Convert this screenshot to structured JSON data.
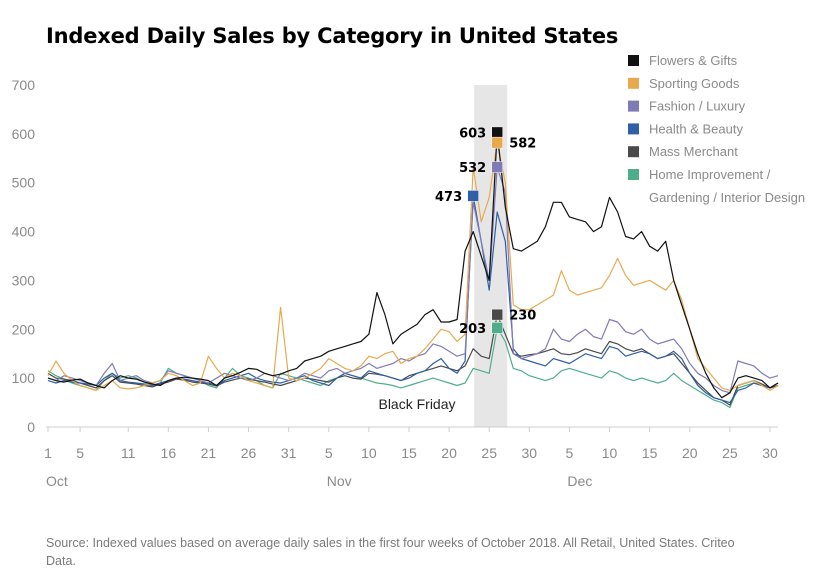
{
  "chart_data": {
    "type": "line",
    "title": "Indexed Daily Sales by Category in United States",
    "xlabel": "",
    "ylabel": "",
    "ylim": [
      0,
      700
    ],
    "y_ticks": [
      0,
      100,
      200,
      300,
      400,
      500,
      600,
      700
    ],
    "x": [
      "Oct 1",
      "Oct 2",
      "Oct 3",
      "Oct 4",
      "Oct 5",
      "Oct 6",
      "Oct 7",
      "Oct 8",
      "Oct 9",
      "Oct 10",
      "Oct 11",
      "Oct 12",
      "Oct 13",
      "Oct 14",
      "Oct 15",
      "Oct 16",
      "Oct 17",
      "Oct 18",
      "Oct 19",
      "Oct 20",
      "Oct 21",
      "Oct 22",
      "Oct 23",
      "Oct 24",
      "Oct 25",
      "Oct 26",
      "Oct 27",
      "Oct 28",
      "Oct 29",
      "Oct 30",
      "Oct 31",
      "Nov 1",
      "Nov 2",
      "Nov 3",
      "Nov 4",
      "Nov 5",
      "Nov 6",
      "Nov 7",
      "Nov 8",
      "Nov 9",
      "Nov 10",
      "Nov 11",
      "Nov 12",
      "Nov 13",
      "Nov 14",
      "Nov 15",
      "Nov 16",
      "Nov 17",
      "Nov 18",
      "Nov 19",
      "Nov 20",
      "Nov 21",
      "Nov 22",
      "Nov 23",
      "Nov 24",
      "Nov 25",
      "Nov 26",
      "Nov 27",
      "Nov 28",
      "Nov 29",
      "Nov 30",
      "Dec 1",
      "Dec 2",
      "Dec 3",
      "Dec 4",
      "Dec 5",
      "Dec 6",
      "Dec 7",
      "Dec 8",
      "Dec 9",
      "Dec 10",
      "Dec 11",
      "Dec 12",
      "Dec 13",
      "Dec 14",
      "Dec 15",
      "Dec 16",
      "Dec 17",
      "Dec 18",
      "Dec 19",
      "Dec 20",
      "Dec 21",
      "Dec 22",
      "Dec 23",
      "Dec 24",
      "Dec 25",
      "Dec 26",
      "Dec 27",
      "Dec 28",
      "Dec 29",
      "Dec 30",
      "Dec 31"
    ],
    "x_tick_labels": [
      {
        "day": "1",
        "month": "Oct",
        "date": "Oct 1"
      },
      {
        "day": "5",
        "month": "",
        "date": "Oct 5"
      },
      {
        "day": "11",
        "month": "",
        "date": "Oct 11"
      },
      {
        "day": "16",
        "month": "",
        "date": "Oct 16"
      },
      {
        "day": "21",
        "month": "",
        "date": "Oct 21"
      },
      {
        "day": "26",
        "month": "",
        "date": "Oct 26"
      },
      {
        "day": "31",
        "month": "",
        "date": "Oct 31"
      },
      {
        "day": "5",
        "month": "Nov",
        "date": "Nov 5"
      },
      {
        "day": "10",
        "month": "",
        "date": "Nov 10"
      },
      {
        "day": "15",
        "month": "",
        "date": "Nov 15"
      },
      {
        "day": "20",
        "month": "",
        "date": "Nov 20"
      },
      {
        "day": "25",
        "month": "",
        "date": "Nov 25"
      },
      {
        "day": "30",
        "month": "",
        "date": "Nov 30"
      },
      {
        "day": "5",
        "month": "Dec",
        "date": "Dec 5"
      },
      {
        "day": "10",
        "month": "",
        "date": "Dec 10"
      },
      {
        "day": "15",
        "month": "",
        "date": "Dec 15"
      },
      {
        "day": "20",
        "month": "",
        "date": "Dec 20"
      },
      {
        "day": "25",
        "month": "",
        "date": "Dec 25"
      },
      {
        "day": "30",
        "month": "",
        "date": "Dec 30"
      }
    ],
    "highlight": {
      "from": "Nov 23",
      "to": "Nov 26",
      "label": "Black Friday",
      "color": "#e6e6e6"
    },
    "legend_position": "top-right",
    "grid": false,
    "series": [
      {
        "name": "Flowers & Gifts",
        "color": "#111111",
        "values": [
          100,
          95,
          92,
          96,
          98,
          90,
          85,
          80,
          95,
          105,
          100,
          98,
          92,
          88,
          85,
          95,
          100,
          102,
          100,
          98,
          95,
          85,
          100,
          105,
          112,
          120,
          118,
          110,
          105,
          108,
          115,
          120,
          135,
          140,
          145,
          155,
          160,
          165,
          170,
          175,
          190,
          275,
          230,
          170,
          190,
          200,
          210,
          230,
          240,
          215,
          215,
          220,
          360,
          400,
          350,
          300,
          603,
          450,
          365,
          360,
          370,
          380,
          410,
          460,
          460,
          430,
          425,
          420,
          400,
          410,
          470,
          440,
          390,
          385,
          400,
          370,
          360,
          380,
          300,
          250,
          200,
          150,
          110,
          80,
          60,
          70,
          100,
          105,
          100,
          95,
          80,
          90
        ]
      },
      {
        "name": "Sporting Goods",
        "color": "#e8a94e",
        "values": [
          105,
          135,
          110,
          95,
          85,
          80,
          75,
          85,
          95,
          80,
          78,
          80,
          85,
          90,
          95,
          110,
          105,
          95,
          85,
          90,
          145,
          120,
          100,
          110,
          105,
          95,
          90,
          85,
          80,
          245,
          100,
          95,
          100,
          110,
          120,
          140,
          130,
          120,
          115,
          125,
          145,
          140,
          150,
          155,
          130,
          140,
          145,
          160,
          180,
          200,
          195,
          175,
          190,
          532,
          420,
          470,
          582,
          500,
          250,
          240,
          240,
          250,
          260,
          270,
          320,
          280,
          270,
          275,
          280,
          285,
          310,
          345,
          310,
          290,
          295,
          300,
          290,
          280,
          300,
          260,
          200,
          140,
          120,
          100,
          80,
          75,
          85,
          90,
          95,
          85,
          75,
          85
        ]
      },
      {
        "name": "Fashion / Luxury",
        "color": "#7f7bb5",
        "values": [
          100,
          95,
          105,
          100,
          95,
          90,
          85,
          110,
          130,
          95,
          100,
          105,
          95,
          90,
          95,
          115,
          110,
          105,
          100,
          95,
          90,
          100,
          110,
          105,
          100,
          95,
          100,
          110,
          105,
          100,
          95,
          100,
          110,
          105,
          100,
          115,
          120,
          110,
          115,
          120,
          130,
          120,
          125,
          130,
          140,
          135,
          145,
          150,
          170,
          165,
          155,
          145,
          150,
          460,
          380,
          300,
          532,
          480,
          150,
          140,
          145,
          150,
          160,
          200,
          180,
          175,
          190,
          200,
          185,
          180,
          220,
          215,
          195,
          190,
          200,
          180,
          170,
          175,
          180,
          160,
          130,
          110,
          100,
          85,
          75,
          70,
          135,
          130,
          125,
          110,
          100,
          105
        ]
      },
      {
        "name": "Health & Beauty",
        "color": "#2f5fa7",
        "values": [
          95,
          90,
          95,
          92,
          90,
          88,
          85,
          100,
          110,
          95,
          92,
          90,
          88,
          85,
          90,
          95,
          100,
          98,
          95,
          92,
          90,
          85,
          95,
          100,
          105,
          110,
          100,
          95,
          92,
          90,
          95,
          100,
          105,
          95,
          90,
          85,
          100,
          110,
          105,
          100,
          115,
          110,
          105,
          100,
          95,
          100,
          110,
          115,
          130,
          140,
          120,
          110,
          135,
          473,
          380,
          280,
          440,
          380,
          160,
          140,
          135,
          130,
          125,
          140,
          135,
          130,
          140,
          150,
          145,
          140,
          165,
          160,
          145,
          150,
          155,
          150,
          140,
          145,
          155,
          140,
          110,
          85,
          70,
          60,
          55,
          50,
          75,
          80,
          90,
          85,
          80,
          90
        ]
      },
      {
        "name": "Mass Merchant",
        "color": "#4a4a4a",
        "values": [
          110,
          100,
          98,
          95,
          90,
          85,
          80,
          95,
          105,
          92,
          90,
          88,
          85,
          82,
          88,
          92,
          98,
          96,
          92,
          90,
          88,
          84,
          92,
          96,
          100,
          98,
          95,
          92,
          88,
          85,
          90,
          95,
          100,
          98,
          95,
          92,
          100,
          105,
          100,
          98,
          110,
          108,
          105,
          100,
          95,
          105,
          110,
          115,
          120,
          125,
          120,
          115,
          125,
          160,
          145,
          140,
          230,
          190,
          150,
          145,
          148,
          150,
          155,
          160,
          150,
          148,
          152,
          160,
          155,
          150,
          175,
          170,
          160,
          155,
          160,
          150,
          140,
          145,
          150,
          130,
          110,
          90,
          75,
          60,
          55,
          45,
          85,
          90,
          95,
          88,
          80,
          85
        ]
      },
      {
        "name": "Home Improvement / Gardening / Interior Design",
        "color": "#4fae8a",
        "values": [
          115,
          105,
          98,
          90,
          85,
          80,
          75,
          95,
          110,
          100,
          105,
          100,
          92,
          85,
          90,
          120,
          110,
          105,
          100,
          95,
          85,
          80,
          100,
          120,
          105,
          100,
          95,
          85,
          80,
          110,
          105,
          100,
          95,
          90,
          85,
          95,
          100,
          110,
          105,
          100,
          95,
          90,
          88,
          85,
          80,
          85,
          90,
          95,
          100,
          95,
          90,
          85,
          90,
          120,
          115,
          110,
          203,
          175,
          120,
          115,
          105,
          100,
          95,
          100,
          115,
          120,
          115,
          110,
          105,
          100,
          115,
          110,
          100,
          95,
          100,
          95,
          90,
          95,
          110,
          95,
          85,
          75,
          65,
          55,
          50,
          40,
          80,
          85,
          90,
          85,
          80,
          85
        ]
      }
    ],
    "peak_labels": [
      {
        "series": 0,
        "date": "Nov 26",
        "value": 603,
        "text": "603",
        "side": "left"
      },
      {
        "series": 1,
        "date": "Nov 26",
        "value": 582,
        "text": "582",
        "side": "right"
      },
      {
        "series": 2,
        "date": "Nov 26",
        "value": 532,
        "text": "532",
        "side": "left"
      },
      {
        "series": 3,
        "date": "Nov 23",
        "value": 473,
        "text": "473",
        "side": "left"
      },
      {
        "series": 4,
        "date": "Nov 26",
        "value": 230,
        "text": "230",
        "side": "right"
      },
      {
        "series": 5,
        "date": "Nov 26",
        "value": 203,
        "text": "203",
        "side": "left"
      }
    ]
  },
  "source": "Source: Indexed values based on average daily sales in the first four weeks of October 2018. All Retail, United States. Criteo Data."
}
